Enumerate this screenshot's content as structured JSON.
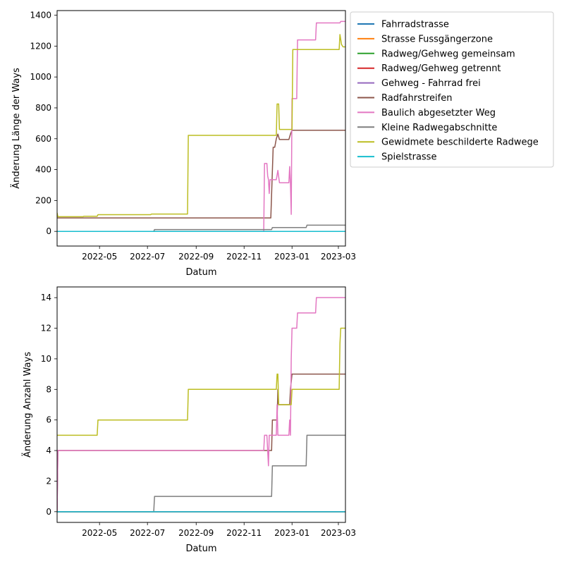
{
  "chart_data": [
    {
      "type": "line",
      "xlabel": "Datum",
      "ylabel": "Änderung Länge der Ways",
      "xlim": [
        "2022-03-08",
        "2023-03-10"
      ],
      "ylim": [
        -95,
        1430
      ],
      "xticks": [
        "2022-05-01",
        "2022-07-01",
        "2022-09-01",
        "2022-11-01",
        "2023-01-01",
        "2023-03-01"
      ],
      "xtick_labels": [
        "2022-05",
        "2022-07",
        "2022-09",
        "2022-11",
        "2023-01",
        "2023-03"
      ],
      "yticks": [
        0,
        200,
        400,
        600,
        800,
        1000,
        1200,
        1400
      ],
      "ytick_labels": [
        "0",
        "200",
        "400",
        "600",
        "800",
        "1000",
        "1200",
        "1400"
      ],
      "grid": false,
      "legend_position": "outside-right",
      "series": [
        {
          "name": "Fahrradstrasse",
          "color": "#1f77b4",
          "points": [
            [
              "2022-03-08",
              0
            ],
            [
              "2023-03-10",
              0
            ]
          ]
        },
        {
          "name": "Strasse Fussgängerzone",
          "color": "#ff7f0e",
          "points": [
            [
              "2022-03-08",
              0
            ],
            [
              "2023-03-10",
              0
            ]
          ]
        },
        {
          "name": "Radweg/Gehweg gemeinsam",
          "color": "#2ca02c",
          "points": [
            [
              "2022-03-08",
              0
            ],
            [
              "2023-03-10",
              0
            ]
          ]
        },
        {
          "name": "Radweg/Gehweg getrennt",
          "color": "#d62728",
          "points": [
            [
              "2022-03-08",
              0
            ],
            [
              "2023-03-10",
              0
            ]
          ]
        },
        {
          "name": "Gehweg - Fahrrad frei",
          "color": "#9467bd",
          "points": [
            [
              "2022-03-08",
              0
            ],
            [
              "2023-03-10",
              0
            ]
          ]
        },
        {
          "name": "Radfahrstreifen",
          "color": "#8c564b",
          "points": [
            [
              "2022-03-08",
              87
            ],
            [
              "2022-12-05",
              87
            ],
            [
              "2022-12-08",
              545
            ],
            [
              "2022-12-10",
              545
            ],
            [
              "2022-12-12",
              600
            ],
            [
              "2022-12-14",
              630
            ],
            [
              "2022-12-16",
              595
            ],
            [
              "2022-12-28",
              595
            ],
            [
              "2022-12-30",
              630
            ],
            [
              "2023-01-01",
              655
            ],
            [
              "2023-03-10",
              655
            ]
          ]
        },
        {
          "name": "Baulich abgesetzter Weg",
          "color": "#e377c2",
          "points": [
            [
              "2022-03-08",
              0
            ],
            [
              "2022-11-26",
              0
            ],
            [
              "2022-11-27",
              440
            ],
            [
              "2022-11-30",
              440
            ],
            [
              "2022-12-01",
              360
            ],
            [
              "2022-12-02",
              335
            ],
            [
              "2022-12-03",
              245
            ],
            [
              "2022-12-04",
              335
            ],
            [
              "2022-12-12",
              335
            ],
            [
              "2022-12-14",
              395
            ],
            [
              "2022-12-16",
              315
            ],
            [
              "2022-12-28",
              315
            ],
            [
              "2022-12-29",
              420
            ],
            [
              "2022-12-30",
              310
            ],
            [
              "2022-12-31",
              110
            ],
            [
              "2023-01-01",
              860
            ],
            [
              "2023-01-07",
              860
            ],
            [
              "2023-01-08",
              1240
            ],
            [
              "2023-01-31",
              1240
            ],
            [
              "2023-02-01",
              1350
            ],
            [
              "2023-03-03",
              1350
            ],
            [
              "2023-03-04",
              1360
            ],
            [
              "2023-03-10",
              1360
            ]
          ]
        },
        {
          "name": "Kleine Radwegabschnitte",
          "color": "#7f7f7f",
          "points": [
            [
              "2022-03-08",
              0
            ],
            [
              "2022-07-09",
              0
            ],
            [
              "2022-07-10",
              12
            ],
            [
              "2022-12-06",
              12
            ],
            [
              "2022-12-07",
              25
            ],
            [
              "2023-01-19",
              25
            ],
            [
              "2023-01-20",
              40
            ],
            [
              "2023-03-10",
              40
            ]
          ]
        },
        {
          "name": "Gewidmete beschilderte Radwege",
          "color": "#bcbd22",
          "points": [
            [
              "2022-03-08",
              120
            ],
            [
              "2022-03-09",
              95
            ],
            [
              "2022-04-10",
              95
            ],
            [
              "2022-04-11",
              98
            ],
            [
              "2022-04-28",
              98
            ],
            [
              "2022-04-29",
              108
            ],
            [
              "2022-07-05",
              108
            ],
            [
              "2022-07-06",
              112
            ],
            [
              "2022-08-21",
              112
            ],
            [
              "2022-08-22",
              622
            ],
            [
              "2022-12-12",
              622
            ],
            [
              "2022-12-13",
              825
            ],
            [
              "2022-12-15",
              825
            ],
            [
              "2022-12-16",
              660
            ],
            [
              "2023-01-01",
              660
            ],
            [
              "2023-01-02",
              1178
            ],
            [
              "2023-03-02",
              1178
            ],
            [
              "2023-03-03",
              1275
            ],
            [
              "2023-03-05",
              1210
            ],
            [
              "2023-03-07",
              1195
            ],
            [
              "2023-03-10",
              1195
            ]
          ]
        },
        {
          "name": "Spielstrasse",
          "color": "#17becf",
          "points": [
            [
              "2022-03-08",
              0
            ],
            [
              "2023-03-10",
              0
            ]
          ]
        }
      ]
    },
    {
      "type": "line",
      "xlabel": "Datum",
      "ylabel": "Änderung Anzahl Ways",
      "xlim": [
        "2022-03-08",
        "2023-03-10"
      ],
      "ylim": [
        -0.7,
        14.7
      ],
      "xticks": [
        "2022-05-01",
        "2022-07-01",
        "2022-09-01",
        "2022-11-01",
        "2023-01-01",
        "2023-03-01"
      ],
      "xtick_labels": [
        "2022-05",
        "2022-07",
        "2022-09",
        "2022-11",
        "2023-01",
        "2023-03"
      ],
      "yticks": [
        0,
        2,
        4,
        6,
        8,
        10,
        12,
        14
      ],
      "ytick_labels": [
        "0",
        "2",
        "4",
        "6",
        "8",
        "10",
        "12",
        "14"
      ],
      "grid": false,
      "series": [
        {
          "name": "Fahrradstrasse",
          "color": "#1f77b4",
          "points": [
            [
              "2022-03-08",
              0
            ],
            [
              "2023-03-10",
              0
            ]
          ]
        },
        {
          "name": "Strasse Fussgängerzone",
          "color": "#ff7f0e",
          "points": [
            [
              "2022-03-08",
              0
            ],
            [
              "2023-03-10",
              0
            ]
          ]
        },
        {
          "name": "Radweg/Gehweg gemeinsam",
          "color": "#2ca02c",
          "points": [
            [
              "2022-03-08",
              0
            ],
            [
              "2023-03-10",
              0
            ]
          ]
        },
        {
          "name": "Radweg/Gehweg getrennt",
          "color": "#d62728",
          "points": [
            [
              "2022-03-08",
              0
            ],
            [
              "2023-03-10",
              0
            ]
          ]
        },
        {
          "name": "Gehweg - Fahrrad frei",
          "color": "#9467bd",
          "points": [
            [
              "2022-03-08",
              0
            ],
            [
              "2023-03-10",
              0
            ]
          ]
        },
        {
          "name": "Radfahrstreifen",
          "color": "#8c564b",
          "points": [
            [
              "2022-03-08",
              0
            ],
            [
              "2022-03-09",
              4
            ],
            [
              "2022-12-06",
              4
            ],
            [
              "2022-12-07",
              6
            ],
            [
              "2022-12-13",
              6
            ],
            [
              "2022-12-14",
              8
            ],
            [
              "2022-12-15",
              7
            ],
            [
              "2022-12-29",
              7
            ],
            [
              "2022-12-30",
              8
            ],
            [
              "2023-01-01",
              9
            ],
            [
              "2023-03-10",
              9
            ]
          ]
        },
        {
          "name": "Baulich abgesetzter Weg",
          "color": "#e377c2",
          "points": [
            [
              "2022-03-08",
              0
            ],
            [
              "2022-03-09",
              4
            ],
            [
              "2022-11-26",
              4
            ],
            [
              "2022-11-27",
              5
            ],
            [
              "2022-11-30",
              5
            ],
            [
              "2022-12-01",
              4
            ],
            [
              "2022-12-02",
              3
            ],
            [
              "2022-12-03",
              5
            ],
            [
              "2022-12-12",
              5
            ],
            [
              "2022-12-13",
              7
            ],
            [
              "2022-12-14",
              5
            ],
            [
              "2022-12-28",
              5
            ],
            [
              "2022-12-29",
              6
            ],
            [
              "2022-12-30",
              5
            ],
            [
              "2022-12-31",
              10
            ],
            [
              "2023-01-01",
              12
            ],
            [
              "2023-01-07",
              12
            ],
            [
              "2023-01-08",
              13
            ],
            [
              "2023-01-31",
              13
            ],
            [
              "2023-02-01",
              14
            ],
            [
              "2023-03-10",
              14
            ]
          ]
        },
        {
          "name": "Kleine Radwegabschnitte",
          "color": "#7f7f7f",
          "points": [
            [
              "2022-03-08",
              0
            ],
            [
              "2022-07-09",
              0
            ],
            [
              "2022-07-10",
              1
            ],
            [
              "2022-12-06",
              1
            ],
            [
              "2022-12-07",
              3
            ],
            [
              "2023-01-19",
              3
            ],
            [
              "2023-01-20",
              5
            ],
            [
              "2023-03-10",
              5
            ]
          ]
        },
        {
          "name": "Gewidmete beschilderte Radwege",
          "color": "#bcbd22",
          "points": [
            [
              "2022-03-08",
              5
            ],
            [
              "2022-04-28",
              5
            ],
            [
              "2022-04-29",
              6
            ],
            [
              "2022-08-21",
              6
            ],
            [
              "2022-08-22",
              8
            ],
            [
              "2022-12-12",
              8
            ],
            [
              "2022-12-13",
              9
            ],
            [
              "2022-12-14",
              9
            ],
            [
              "2022-12-15",
              7
            ],
            [
              "2022-12-31",
              7
            ],
            [
              "2023-01-01",
              8
            ],
            [
              "2023-03-02",
              8
            ],
            [
              "2023-03-03",
              11
            ],
            [
              "2023-03-04",
              12
            ],
            [
              "2023-03-10",
              12
            ]
          ]
        },
        {
          "name": "Spielstrasse",
          "color": "#17becf",
          "points": [
            [
              "2022-03-08",
              0
            ],
            [
              "2023-03-10",
              0
            ]
          ]
        }
      ]
    }
  ]
}
